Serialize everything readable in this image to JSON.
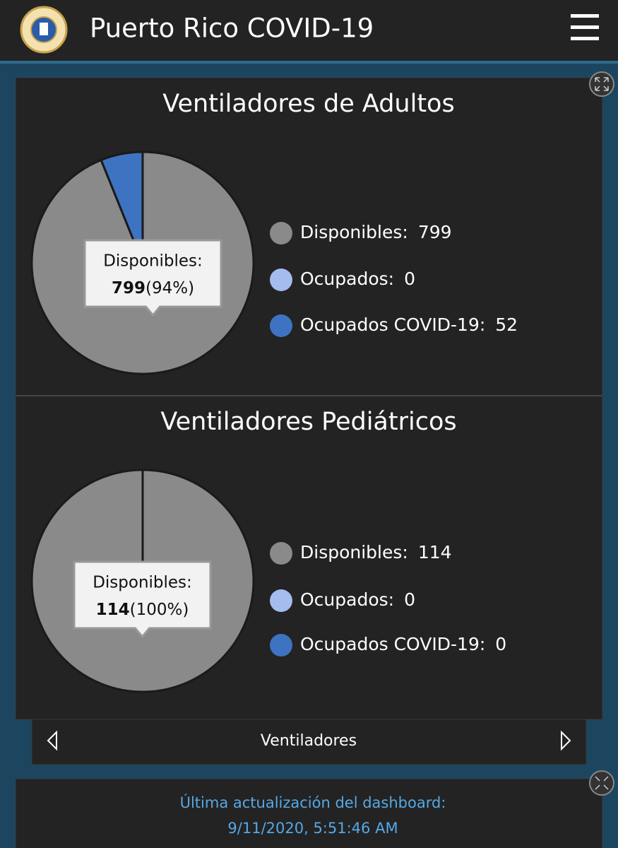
{
  "header": {
    "title": "Puerto Rico COVID-19"
  },
  "chart_data": [
    {
      "type": "pie",
      "title": "Ventiladores de Adultos",
      "categories": [
        "Disponibles:",
        "Ocupados:",
        "Ocupados COVID-19:"
      ],
      "values": [
        799,
        0,
        52
      ],
      "colors": [
        "#8a8a8a",
        "#a4bcee",
        "#3e73c2"
      ],
      "tooltip": {
        "label": "Disponibles:",
        "percent": "(94%)"
      }
    },
    {
      "type": "pie",
      "title": "Ventiladores Pediátricos",
      "categories": [
        "Disponibles:",
        "Ocupados:",
        "Ocupados COVID-19:"
      ],
      "values": [
        114,
        0,
        0
      ],
      "colors": [
        "#8a8a8a",
        "#a4bcee",
        "#3e73c2"
      ],
      "tooltip": {
        "label": "Disponibles:",
        "percent": "(100%)"
      }
    }
  ],
  "nav": {
    "label": "Ventiladores"
  },
  "footer": {
    "line1": "Última actualización del dashboard:",
    "line2": "9/11/2020, 5:51:46 AM"
  }
}
